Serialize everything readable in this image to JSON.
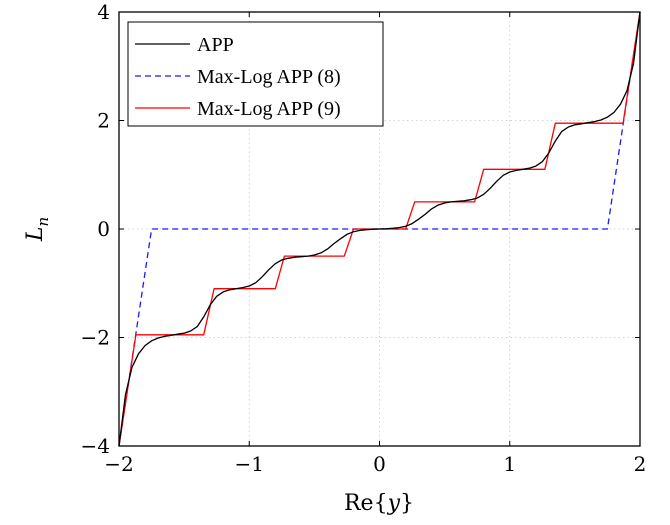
{
  "chart_data": {
    "type": "line",
    "xlabel": "Re{y}",
    "ylabel": "L_n",
    "xlim": [
      -2,
      2
    ],
    "ylim": [
      -4,
      4
    ],
    "xticks": [
      -2,
      -1,
      0,
      1,
      2
    ],
    "yticks": [
      -4,
      -2,
      0,
      2,
      4
    ],
    "xtick_labels": [
      "−2",
      "−1",
      "0",
      "1",
      "2"
    ],
    "ytick_labels": [
      "−4",
      "−2",
      "0",
      "2",
      "4"
    ],
    "grid": true,
    "legend_position": "top-left",
    "series": [
      {
        "name": "APP",
        "color": "#000000",
        "style": "solid",
        "x": [
          -2.0,
          -1.95,
          -1.9,
          -1.85,
          -1.8,
          -1.75,
          -1.7,
          -1.65,
          -1.6,
          -1.55,
          -1.5,
          -1.45,
          -1.4,
          -1.35,
          -1.3,
          -1.25,
          -1.2,
          -1.15,
          -1.1,
          -1.05,
          -1.0,
          -0.95,
          -0.9,
          -0.85,
          -0.8,
          -0.75,
          -0.7,
          -0.65,
          -0.6,
          -0.55,
          -0.5,
          -0.45,
          -0.4,
          -0.35,
          -0.3,
          -0.25,
          -0.2,
          -0.15,
          -0.1,
          -0.05,
          0.0,
          0.05,
          0.1,
          0.15,
          0.2,
          0.25,
          0.3,
          0.35,
          0.4,
          0.45,
          0.5,
          0.55,
          0.6,
          0.65,
          0.7,
          0.75,
          0.8,
          0.85,
          0.9,
          0.95,
          1.0,
          1.05,
          1.1,
          1.15,
          1.2,
          1.25,
          1.3,
          1.35,
          1.4,
          1.45,
          1.5,
          1.55,
          1.6,
          1.65,
          1.7,
          1.75,
          1.8,
          1.85,
          1.9,
          1.95,
          2.0
        ],
        "y": [
          -4.0,
          -3.05,
          -2.55,
          -2.3,
          -2.15,
          -2.06,
          -2.01,
          -1.98,
          -1.96,
          -1.94,
          -1.92,
          -1.88,
          -1.8,
          -1.62,
          -1.4,
          -1.24,
          -1.16,
          -1.12,
          -1.1,
          -1.08,
          -1.05,
          -0.99,
          -0.88,
          -0.75,
          -0.64,
          -0.57,
          -0.54,
          -0.52,
          -0.51,
          -0.5,
          -0.48,
          -0.44,
          -0.37,
          -0.27,
          -0.18,
          -0.1,
          -0.05,
          -0.025,
          -0.012,
          -0.004,
          0.0,
          0.004,
          0.012,
          0.025,
          0.05,
          0.1,
          0.18,
          0.27,
          0.37,
          0.44,
          0.48,
          0.5,
          0.51,
          0.52,
          0.54,
          0.57,
          0.64,
          0.75,
          0.88,
          0.99,
          1.05,
          1.08,
          1.1,
          1.12,
          1.16,
          1.24,
          1.4,
          1.62,
          1.8,
          1.88,
          1.92,
          1.94,
          1.96,
          1.98,
          2.01,
          2.06,
          2.15,
          2.3,
          2.55,
          3.05,
          4.0
        ]
      },
      {
        "name": "Max-Log APP (8)",
        "color": "#1a1aff",
        "style": "dashed",
        "x": [
          -2.0,
          -1.75,
          1.75,
          2.0
        ],
        "y": [
          -4.0,
          0.0,
          0.0,
          4.0
        ]
      },
      {
        "name": "Max-Log APP (9)",
        "color": "#ff0000",
        "style": "solid",
        "x": [
          -2.0,
          -1.87,
          -1.35,
          -1.27,
          -0.8,
          -0.73,
          -0.27,
          -0.2,
          0.2,
          0.27,
          0.73,
          0.8,
          1.27,
          1.35,
          1.87,
          2.0
        ],
        "y": [
          -4.0,
          -1.95,
          -1.95,
          -1.1,
          -1.1,
          -0.5,
          -0.5,
          0.0,
          0.0,
          0.5,
          0.5,
          1.1,
          1.1,
          1.95,
          1.95,
          4.0
        ]
      }
    ]
  }
}
